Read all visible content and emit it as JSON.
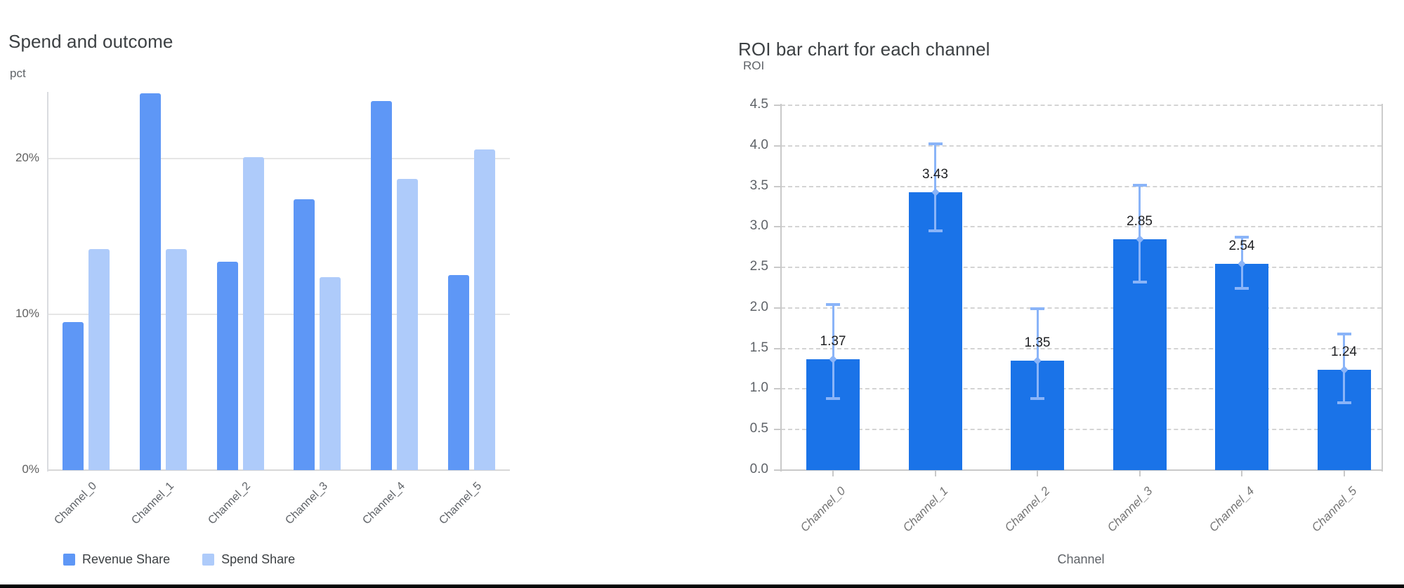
{
  "page": {
    "background": "#ffffff",
    "divider_color": "#060606"
  },
  "chart_data": [
    {
      "type": "bar",
      "title": "Spend and outcome",
      "ylabel": "pct",
      "xlabel": "",
      "categories": [
        "Channel_0",
        "Channel_1",
        "Channel_2",
        "Channel_3",
        "Channel_4",
        "Channel_5"
      ],
      "series": [
        {
          "name": "Revenue Share",
          "color": "#5e97f6",
          "values": [
            9.5,
            24.2,
            13.4,
            17.4,
            23.7,
            12.5
          ]
        },
        {
          "name": "Spend Share",
          "color": "#aecbfa",
          "values": [
            14.2,
            14.2,
            20.1,
            12.4,
            18.7,
            20.6
          ]
        }
      ],
      "y_ticks": [
        {
          "label": "0%",
          "value": 0
        },
        {
          "label": "10%",
          "value": 10
        },
        {
          "label": "20%",
          "value": 20
        }
      ],
      "ylim": [
        0,
        24.3
      ],
      "grid": "solid-horizontal",
      "legend_position": "bottom"
    },
    {
      "type": "bar",
      "title": "ROI bar chart for each channel",
      "ylabel": "ROI",
      "xlabel": "Channel",
      "categories": [
        "Channel_0",
        "Channel_1",
        "Channel_2",
        "Channel_3",
        "Channel_4",
        "Channel_5"
      ],
      "values": [
        1.37,
        3.43,
        1.35,
        2.85,
        2.54,
        1.24
      ],
      "data_labels": [
        "1.37",
        "3.43",
        "1.35",
        "2.85",
        "2.54",
        "1.24"
      ],
      "error_low": [
        0.88,
        2.95,
        0.88,
        2.32,
        2.24,
        0.83
      ],
      "error_high": [
        2.04,
        4.02,
        1.99,
        3.51,
        2.87,
        1.68
      ],
      "bar_color": "#1a73e8",
      "error_color": "#8ab4f8",
      "y_ticks": [
        {
          "label": "0.0",
          "value": 0.0
        },
        {
          "label": "0.5",
          "value": 0.5
        },
        {
          "label": "1.0",
          "value": 1.0
        },
        {
          "label": "1.5",
          "value": 1.5
        },
        {
          "label": "2.0",
          "value": 2.0
        },
        {
          "label": "2.5",
          "value": 2.5
        },
        {
          "label": "3.0",
          "value": 3.0
        },
        {
          "label": "3.5",
          "value": 3.5
        },
        {
          "label": "4.0",
          "value": 4.0
        },
        {
          "label": "4.5",
          "value": 4.5
        }
      ],
      "ylim": [
        0,
        4.5
      ],
      "grid": "dashed-horizontal",
      "legend_position": "none"
    }
  ]
}
